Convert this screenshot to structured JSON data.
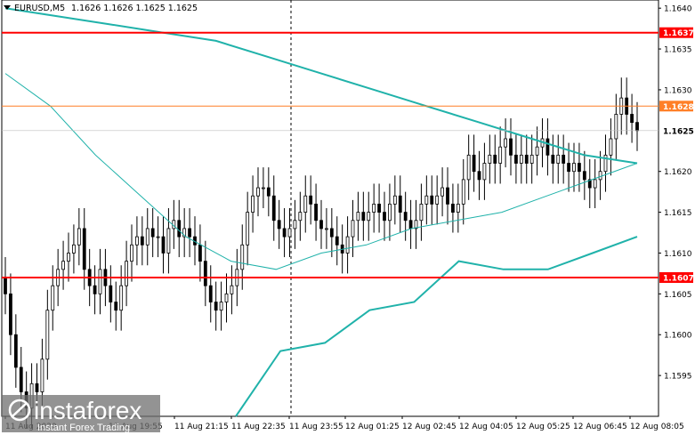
{
  "chart_data": {
    "type": "candlestick",
    "symbol": "EURUSD,M5",
    "ohlc": [
      "1.1626",
      "1.1626",
      "1.1625",
      "1.1625"
    ],
    "ylim": [
      1.159,
      1.1641
    ],
    "y_ticks": [
      "1.1640",
      "1.1635",
      "1.1630",
      "1.1620",
      "1.1615",
      "1.1610",
      "1.1605",
      "1.1600",
      "1.1595"
    ],
    "x_ticks": [
      "11 Aug 2020",
      "11 Aug 19:55",
      "11 Aug 21:15",
      "11 Aug 22:35",
      "11 Aug 23:55",
      "12 Aug 01:25",
      "12 Aug 02:45",
      "12 Aug 04:05",
      "12 Aug 05:25",
      "12 Aug 06:45",
      "12 Aug 08:05"
    ],
    "separator_after_label": "11 Aug 22:35",
    "levels": [
      {
        "value": 1.1637,
        "label": "1.1637",
        "color": "#ff0000"
      },
      {
        "value": 1.1628,
        "label": "1.1628",
        "color": "#ff7f27"
      },
      {
        "value": 1.1607,
        "label": "1.1607",
        "color": "#ff0000"
      }
    ],
    "current_price": {
      "value": 1.1625,
      "label": "1.1625"
    },
    "closes": [
      1.1605,
      1.16,
      1.1596,
      1.1593,
      1.1591,
      1.1594,
      1.1593,
      1.1597,
      1.1603,
      1.1606,
      1.1608,
      1.1609,
      1.161,
      1.1611,
      1.1613,
      1.1608,
      1.1606,
      1.1605,
      1.1608,
      1.1606,
      1.1604,
      1.1603,
      1.1606,
      1.1609,
      1.1611,
      1.1612,
      1.1611,
      1.1613,
      1.1612,
      1.1612,
      1.161,
      1.1613,
      1.1614,
      1.1612,
      1.1613,
      1.1612,
      1.1611,
      1.1609,
      1.1606,
      1.1604,
      1.1603,
      1.1604,
      1.1605,
      1.1606,
      1.1608,
      1.1611,
      1.1615,
      1.1617,
      1.1618,
      1.1618,
      1.1617,
      1.1614,
      1.1613,
      1.1612,
      1.1613,
      1.1614,
      1.1615,
      1.1617,
      1.1616,
      1.1614,
      1.1613,
      1.1613,
      1.1612,
      1.1611,
      1.161,
      1.1612,
      1.1614,
      1.1615,
      1.1614,
      1.1615,
      1.1616,
      1.1615,
      1.1614,
      1.1616,
      1.1617,
      1.1615,
      1.1614,
      1.1613,
      1.1614,
      1.1616,
      1.1617,
      1.1616,
      1.1617,
      1.1618,
      1.1616,
      1.1615,
      1.1616,
      1.1619,
      1.1622,
      1.162,
      1.1619,
      1.1621,
      1.1622,
      1.1621,
      1.1623,
      1.1624,
      1.1622,
      1.1621,
      1.1622,
      1.1621,
      1.1622,
      1.1623,
      1.1624,
      1.1622,
      1.1621,
      1.1622,
      1.1621,
      1.162,
      1.1621,
      1.162,
      1.1619,
      1.1618,
      1.1619,
      1.162,
      1.1622,
      1.1624,
      1.1627,
      1.1629,
      1.1627,
      1.1626,
      1.1625
    ],
    "ma_upper": [
      1.164,
      1.1639,
      1.1638,
      1.1637,
      1.1636,
      1.1634,
      1.1632,
      1.163,
      1.1628,
      1.1626,
      1.1624,
      1.1622,
      1.1621
    ],
    "ma_middle": [
      1.1632,
      1.1628,
      1.1622,
      1.1617,
      1.1612,
      1.1609,
      1.1608,
      1.161,
      1.1611,
      1.1613,
      1.1614,
      1.1615,
      1.1617,
      1.1619,
      1.1621
    ],
    "ma_lower": [
      1.159,
      1.1598,
      1.1599,
      1.1603,
      1.1604,
      1.1609,
      1.1608,
      1.1608,
      1.161,
      1.1612
    ],
    "logo": {
      "brand": "instaforex",
      "sub": "Instant Forex Trading"
    },
    "colors": {
      "bull": "#000000",
      "bear": "#000000",
      "band": "#20b2aa",
      "grid": "#ffffff",
      "axis": "#000000"
    }
  }
}
